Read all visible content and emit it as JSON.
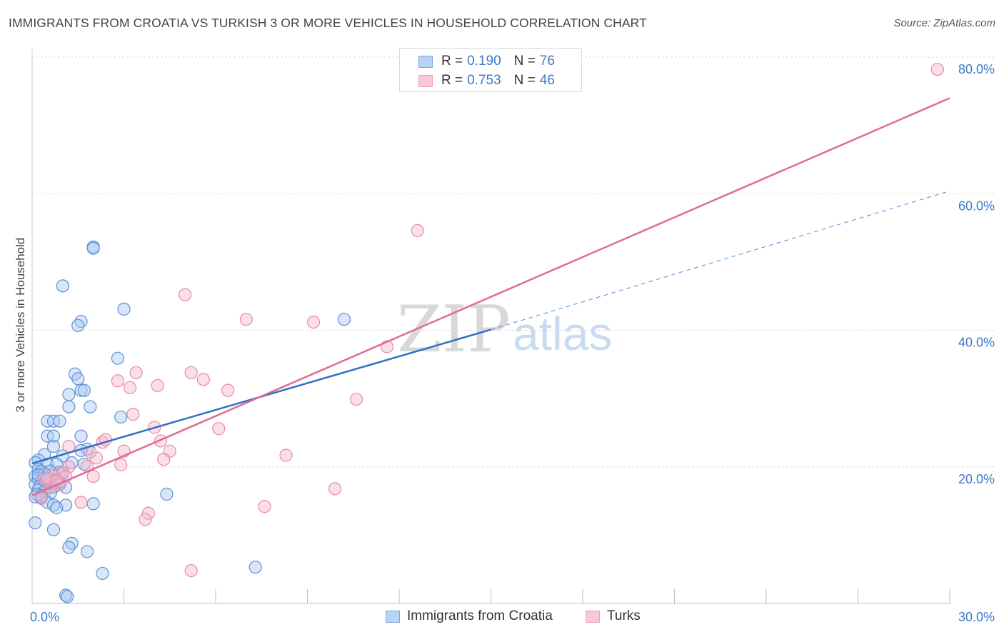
{
  "title": "IMMIGRANTS FROM CROATIA VS TURKISH 3 OR MORE VEHICLES IN HOUSEHOLD CORRELATION CHART",
  "source": "Source: ZipAtlas.com",
  "watermark": {
    "zip": "ZIP",
    "atlas": "atlas"
  },
  "legend": {
    "rows": [
      {
        "r_label": "R =",
        "r_value": "0.190",
        "n_label": "N =",
        "n_value": "76"
      },
      {
        "r_label": "R =",
        "r_value": "0.753",
        "n_label": "N =",
        "n_value": "46"
      }
    ]
  },
  "bottom_legend": [
    "Immigrants from Croatia",
    "Turks"
  ],
  "chart_data": {
    "type": "scatter",
    "title": "IMMIGRANTS FROM CROATIA VS TURKISH 3 OR MORE VEHICLES IN HOUSEHOLD CORRELATION CHART",
    "xlabel": "",
    "ylabel": "3 or more Vehicles in Household",
    "xlim": [
      0,
      30
    ],
    "ylim": [
      0,
      80
    ],
    "x_tick_labels": [
      "0.0%",
      "30.0%"
    ],
    "y_tick_labels": [
      "20.0%",
      "40.0%",
      "60.0%",
      "80.0%"
    ],
    "y_ticks": [
      20,
      40,
      60,
      80
    ],
    "grid": true,
    "colors": {
      "croatia_fill": "#a9c8f0",
      "croatia_stroke": "#5f90d6",
      "croatia_line": "#3070c8",
      "turks_fill": "#f6b8cc",
      "turks_stroke": "#e68aa8",
      "turks_line": "#e06a93",
      "tick_label": "#3f78c8"
    },
    "series": [
      {
        "name": "Immigrants from Croatia",
        "trend": {
          "x": [
            0,
            15
          ],
          "y": [
            20.5,
            40.1
          ],
          "dashed_extension": {
            "x": [
              15,
              30
            ],
            "y": [
              40.1,
              60.4
            ]
          }
        },
        "points": [
          [
            2.0,
            52.2
          ],
          [
            2.0,
            52.0
          ],
          [
            1.0,
            46.5
          ],
          [
            3.0,
            43.1
          ],
          [
            1.6,
            41.3
          ],
          [
            1.5,
            40.7
          ],
          [
            10.2,
            41.6
          ],
          [
            2.8,
            35.9
          ],
          [
            1.4,
            33.6
          ],
          [
            1.5,
            32.9
          ],
          [
            1.6,
            31.2
          ],
          [
            1.7,
            31.2
          ],
          [
            1.2,
            30.6
          ],
          [
            1.9,
            28.8
          ],
          [
            1.2,
            28.8
          ],
          [
            2.9,
            27.3
          ],
          [
            0.5,
            26.7
          ],
          [
            0.7,
            26.7
          ],
          [
            0.9,
            26.7
          ],
          [
            0.5,
            24.5
          ],
          [
            0.7,
            24.5
          ],
          [
            1.6,
            24.5
          ],
          [
            0.7,
            23.0
          ],
          [
            1.8,
            22.6
          ],
          [
            1.6,
            22.4
          ],
          [
            0.4,
            21.8
          ],
          [
            1.0,
            21.6
          ],
          [
            0.2,
            21.0
          ],
          [
            0.1,
            20.6
          ],
          [
            0.5,
            20.4
          ],
          [
            0.8,
            20.4
          ],
          [
            1.3,
            20.6
          ],
          [
            1.7,
            20.4
          ],
          [
            0.2,
            19.6
          ],
          [
            0.3,
            19.4
          ],
          [
            0.6,
            19.4
          ],
          [
            0.9,
            19.2
          ],
          [
            1.0,
            19.0
          ],
          [
            0.1,
            18.6
          ],
          [
            0.2,
            18.3
          ],
          [
            0.35,
            18.3
          ],
          [
            0.5,
            18.2
          ],
          [
            0.7,
            18.0
          ],
          [
            0.9,
            17.6
          ],
          [
            0.1,
            17.4
          ],
          [
            0.25,
            17.2
          ],
          [
            0.5,
            17.0
          ],
          [
            0.7,
            17.0
          ],
          [
            1.1,
            17.0
          ],
          [
            0.2,
            16.6
          ],
          [
            0.4,
            16.4
          ],
          [
            0.6,
            16.2
          ],
          [
            0.15,
            16.0
          ],
          [
            0.3,
            15.8
          ],
          [
            0.1,
            15.6
          ],
          [
            0.3,
            15.4
          ],
          [
            4.4,
            16.0
          ],
          [
            0.5,
            14.8
          ],
          [
            0.7,
            14.4
          ],
          [
            1.1,
            14.4
          ],
          [
            2.0,
            14.6
          ],
          [
            0.8,
            14.0
          ],
          [
            0.1,
            11.8
          ],
          [
            0.7,
            10.8
          ],
          [
            1.3,
            8.8
          ],
          [
            1.2,
            8.2
          ],
          [
            1.8,
            7.6
          ],
          [
            7.3,
            5.3
          ],
          [
            2.3,
            4.4
          ],
          [
            1.1,
            1.2
          ],
          [
            1.15,
            1.0
          ],
          [
            0.9,
            17.8
          ],
          [
            0.4,
            19.0
          ],
          [
            0.6,
            17.6
          ],
          [
            0.2,
            18.8
          ],
          [
            0.45,
            17.9
          ]
        ]
      },
      {
        "name": "Turks",
        "trend": {
          "x": [
            0,
            30
          ],
          "y": [
            15.8,
            74.0
          ]
        },
        "points": [
          [
            29.6,
            78.2
          ],
          [
            12.6,
            54.6
          ],
          [
            5.0,
            45.2
          ],
          [
            7.0,
            41.6
          ],
          [
            9.2,
            41.2
          ],
          [
            11.6,
            37.6
          ],
          [
            10.6,
            29.9
          ],
          [
            3.4,
            33.8
          ],
          [
            2.8,
            32.6
          ],
          [
            3.2,
            31.6
          ],
          [
            4.1,
            31.9
          ],
          [
            5.2,
            33.8
          ],
          [
            5.6,
            32.8
          ],
          [
            6.4,
            31.2
          ],
          [
            3.3,
            27.7
          ],
          [
            4.0,
            25.8
          ],
          [
            6.1,
            25.6
          ],
          [
            2.3,
            23.6
          ],
          [
            2.4,
            24.0
          ],
          [
            4.2,
            23.8
          ],
          [
            3.0,
            22.3
          ],
          [
            4.5,
            22.3
          ],
          [
            8.3,
            21.7
          ],
          [
            4.3,
            21.1
          ],
          [
            2.1,
            21.3
          ],
          [
            2.9,
            20.3
          ],
          [
            1.2,
            23.0
          ],
          [
            1.9,
            22.2
          ],
          [
            1.2,
            20.0
          ],
          [
            1.8,
            20.1
          ],
          [
            2.0,
            18.6
          ],
          [
            1.0,
            19.2
          ],
          [
            1.1,
            18.6
          ],
          [
            0.7,
            18.6
          ],
          [
            0.4,
            18.2
          ],
          [
            0.9,
            17.4
          ],
          [
            0.6,
            17.0
          ],
          [
            0.3,
            15.6
          ],
          [
            9.9,
            16.8
          ],
          [
            7.6,
            14.2
          ],
          [
            1.6,
            14.8
          ],
          [
            3.8,
            13.2
          ],
          [
            3.7,
            12.3
          ],
          [
            5.2,
            4.8
          ],
          [
            0.5,
            18.3
          ],
          [
            0.8,
            18.0
          ]
        ]
      }
    ]
  }
}
